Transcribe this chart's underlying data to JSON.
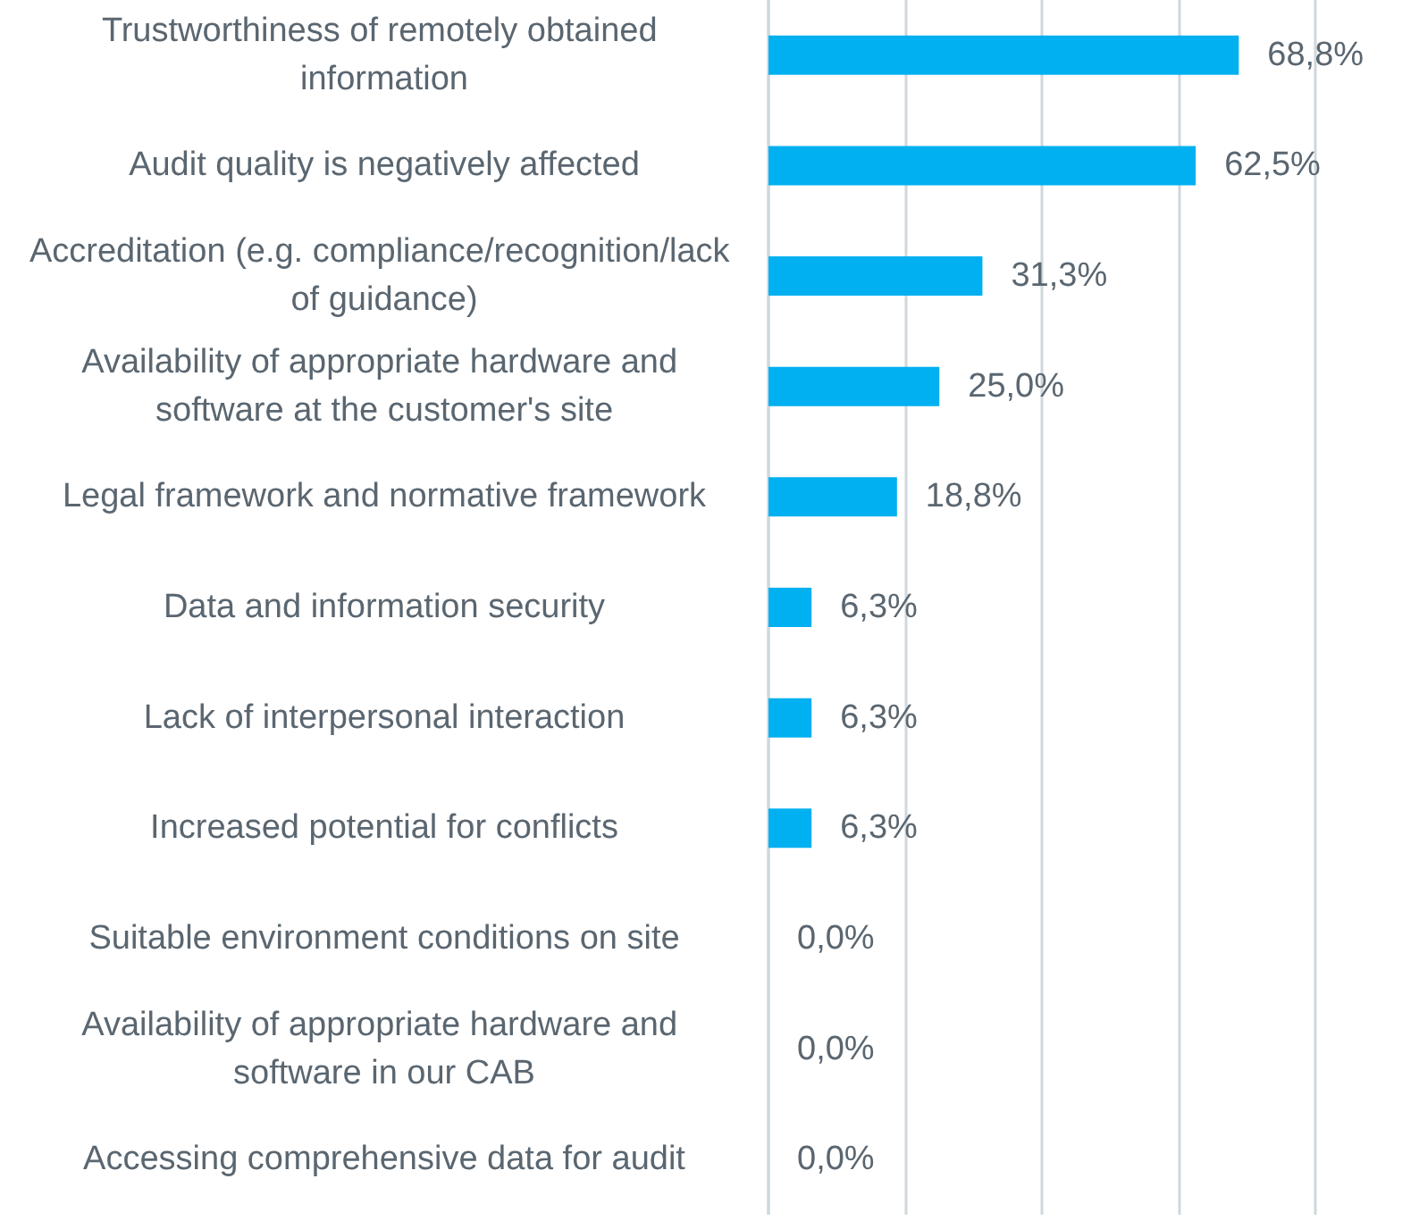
{
  "chart_data": {
    "type": "bar",
    "orientation": "horizontal",
    "categories": [
      "Trustworthiness of remotely obtained information",
      "Audit quality is negatively affected",
      "Accreditation (e.g. compliance/recognition/lack of guidance)",
      "Availability of appropriate hardware and software at the customer's site",
      "Legal framework and normative framework",
      "Data and information security",
      "Lack of interpersonal interaction",
      "Increased potential for conflicts",
      "Suitable environment conditions on site",
      "Availability of appropriate hardware and software in our CAB",
      "Accessing comprehensive data for audit"
    ],
    "values": [
      68.8,
      62.5,
      31.3,
      25.0,
      18.8,
      6.3,
      6.3,
      6.3,
      0.0,
      0.0,
      0.0
    ],
    "value_labels": [
      "68,8%",
      "62,5%",
      "31,3%",
      "25,0%",
      "18,8%",
      "6,3%",
      "6,3%",
      "6,3%",
      "0,0%",
      "0,0%",
      "0,0%"
    ],
    "color": "#00b0f0",
    "xlim": [
      0,
      80
    ],
    "xticks": [
      {
        "value": 0,
        "label": null
      },
      {
        "value": 20,
        "label": null
      },
      {
        "value": 40,
        "label": null
      },
      {
        "value": 60,
        "label": null
      },
      {
        "value": 80,
        "label": null
      }
    ],
    "grid": "x",
    "tick_labels": "y"
  }
}
